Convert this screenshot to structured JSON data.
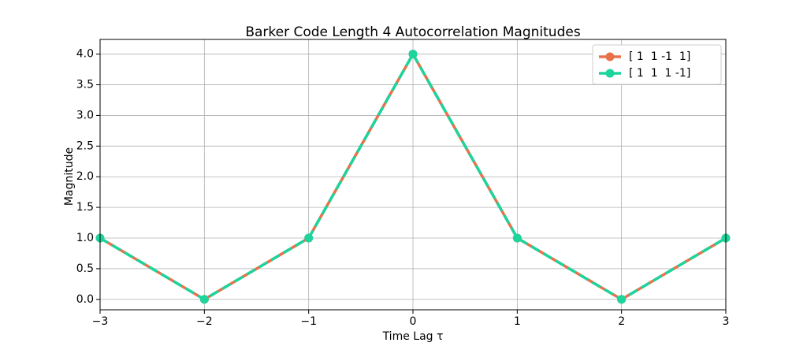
{
  "chart_data": {
    "type": "line",
    "title": "Barker Code Length 4 Autocorrelation Magnitudes",
    "x_label": "Time Lag τ",
    "y_label": "Magnitude",
    "x": [
      -3,
      -2,
      -1,
      0,
      1,
      2,
      3
    ],
    "series": [
      {
        "name": "[ 1  1 -1  1]",
        "color": "#e8714a",
        "linestyle": "solid",
        "values": [
          1,
          0,
          1,
          4,
          1,
          0,
          1
        ]
      },
      {
        "name": "[ 1  1  1 -1]",
        "color": "#1dd49c",
        "linestyle": "dashed",
        "values": [
          1,
          0,
          1,
          4,
          1,
          0,
          1
        ]
      }
    ],
    "xlim": [
      -3,
      3
    ],
    "xticks": [
      {
        "value": -3,
        "label": "−3"
      },
      {
        "value": -2,
        "label": "−2"
      },
      {
        "value": -1,
        "label": "−1"
      },
      0,
      1,
      2,
      3
    ],
    "ylim": [
      -0.17,
      4.24
    ],
    "yticks": [
      {
        "value": 0,
        "label": "0.0"
      },
      0.5,
      {
        "value": 1,
        "label": "1.0"
      },
      1.5,
      {
        "value": 2,
        "label": "2.0"
      },
      2.5,
      {
        "value": 3,
        "label": "3.0"
      },
      3.5,
      {
        "value": 4,
        "label": "4.0"
      }
    ],
    "grid": true,
    "legend": "upper right"
  }
}
